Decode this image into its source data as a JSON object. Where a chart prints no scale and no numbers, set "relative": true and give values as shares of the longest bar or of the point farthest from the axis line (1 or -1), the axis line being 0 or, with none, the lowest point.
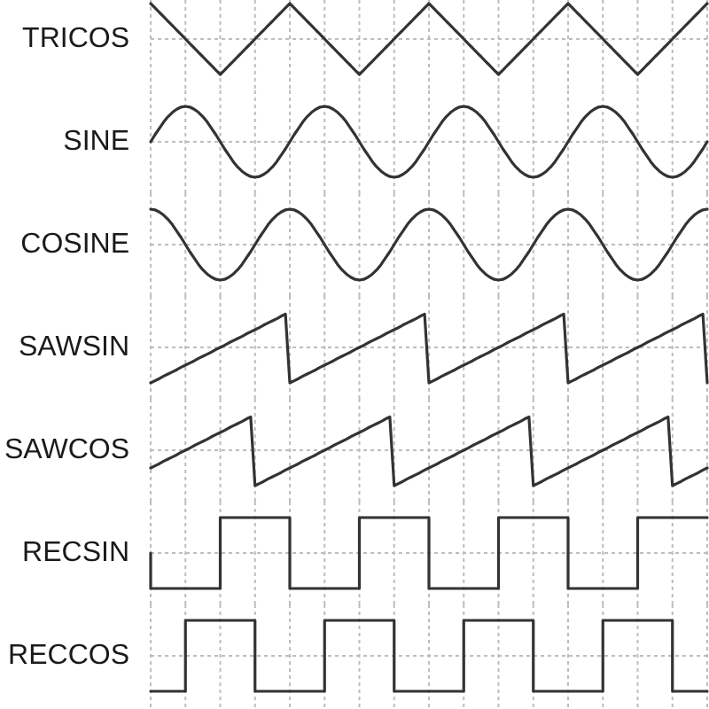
{
  "chart_data": [
    {
      "type": "line",
      "ylabel": "TRICOS",
      "relative": true,
      "color": "#333333",
      "grid": "x",
      "categories": [
        null,
        null,
        null,
        null,
        null,
        null,
        null,
        null,
        null,
        null,
        null,
        null,
        null,
        null,
        null,
        null,
        null,
        null,
        null,
        null,
        null,
        null,
        null,
        null,
        null,
        null,
        null,
        null,
        null,
        null,
        null,
        null,
        null,
        null,
        null,
        null,
        null,
        null,
        null,
        null,
        null,
        null,
        null,
        null,
        null,
        null,
        null,
        null,
        null,
        null,
        null,
        null,
        null,
        null,
        null,
        null,
        null,
        null,
        null,
        null,
        null,
        null,
        null,
        null,
        null,
        null,
        null,
        null,
        null,
        null,
        null,
        null,
        null,
        null,
        null,
        null,
        null,
        null,
        null,
        null,
        null,
        null,
        null,
        null,
        null,
        null,
        null,
        null,
        null,
        null,
        null,
        null,
        null,
        null,
        null,
        null,
        null,
        null,
        null,
        null,
        null,
        null,
        null,
        null,
        null,
        null,
        null,
        null,
        null,
        null,
        null,
        null,
        null,
        null,
        null,
        null,
        null,
        null,
        null,
        null,
        null,
        null,
        null,
        null,
        null,
        null,
        null,
        null,
        null
      ],
      "values": [
        1,
        0.88,
        0.75,
        0.63,
        0.5,
        0.38,
        0.25,
        0.13,
        0,
        -0.13,
        -0.25,
        -0.38,
        -0.5,
        -0.63,
        -0.75,
        -0.88,
        -1,
        -0.88,
        -0.75,
        -0.63,
        -0.5,
        -0.38,
        -0.25,
        -0.13,
        0,
        0.13,
        0.25,
        0.38,
        0.5,
        0.63,
        0.75,
        0.88,
        1,
        0.88,
        0.75,
        0.63,
        0.5,
        0.38,
        0.25,
        0.13,
        0,
        -0.13,
        -0.25,
        -0.38,
        -0.5,
        -0.63,
        -0.75,
        -0.88,
        -1,
        -0.88,
        -0.75,
        -0.63,
        -0.5,
        -0.38,
        -0.25,
        -0.13,
        0,
        0.13,
        0.25,
        0.38,
        0.5,
        0.63,
        0.75,
        0.88,
        1,
        0.88,
        0.75,
        0.63,
        0.5,
        0.38,
        0.25,
        0.13,
        0,
        -0.13,
        -0.25,
        -0.38,
        -0.5,
        -0.63,
        -0.75,
        -0.88,
        -1,
        -0.88,
        -0.75,
        -0.63,
        -0.5,
        -0.38,
        -0.25,
        -0.13,
        0,
        0.13,
        0.25,
        0.38,
        0.5,
        0.63,
        0.75,
        0.88,
        1,
        0.88,
        0.75,
        0.63,
        0.5,
        0.38,
        0.25,
        0.13,
        0,
        -0.13,
        -0.25,
        -0.38,
        -0.5,
        -0.63,
        -0.75,
        -0.88,
        -1,
        -0.88,
        -0.75,
        -0.63,
        -0.5,
        -0.38,
        -0.25,
        -0.13,
        0,
        0.13,
        0.25,
        0.38,
        0.5,
        0.63,
        0.75,
        0.88,
        1
      ]
    },
    {
      "type": "line",
      "ylabel": "SINE",
      "relative": true,
      "color": "#333333",
      "grid": "x",
      "categories": [
        null,
        null,
        null,
        null,
        null,
        null,
        null,
        null,
        null,
        null,
        null,
        null,
        null,
        null,
        null,
        null,
        null,
        null,
        null,
        null,
        null,
        null,
        null,
        null,
        null,
        null,
        null,
        null,
        null,
        null,
        null,
        null,
        null,
        null,
        null,
        null,
        null,
        null,
        null,
        null,
        null,
        null,
        null,
        null,
        null,
        null,
        null,
        null,
        null,
        null,
        null,
        null,
        null,
        null,
        null,
        null,
        null,
        null,
        null,
        null,
        null,
        null,
        null,
        null,
        null,
        null,
        null,
        null,
        null,
        null,
        null,
        null,
        null,
        null,
        null,
        null,
        null,
        null,
        null,
        null,
        null,
        null,
        null,
        null,
        null,
        null,
        null,
        null,
        null,
        null,
        null,
        null,
        null,
        null,
        null,
        null,
        null,
        null,
        null,
        null,
        null,
        null,
        null,
        null,
        null,
        null,
        null,
        null,
        null,
        null,
        null,
        null,
        null,
        null,
        null,
        null,
        null,
        null,
        null,
        null,
        null,
        null,
        null,
        null,
        null,
        null,
        null,
        null,
        null
      ],
      "values": [
        0,
        0.2,
        0.38,
        0.56,
        0.71,
        0.83,
        0.92,
        0.98,
        1,
        0.98,
        0.92,
        0.83,
        0.71,
        0.56,
        0.38,
        0.2,
        0,
        -0.2,
        -0.38,
        -0.56,
        -0.71,
        -0.83,
        -0.92,
        -0.98,
        -1,
        -0.98,
        -0.92,
        -0.83,
        -0.71,
        -0.56,
        -0.38,
        -0.2,
        0,
        0.2,
        0.38,
        0.56,
        0.71,
        0.83,
        0.92,
        0.98,
        1,
        0.98,
        0.92,
        0.83,
        0.71,
        0.56,
        0.38,
        0.2,
        0,
        -0.2,
        -0.38,
        -0.56,
        -0.71,
        -0.83,
        -0.92,
        -0.98,
        -1,
        -0.98,
        -0.92,
        -0.83,
        -0.71,
        -0.56,
        -0.38,
        -0.2,
        0,
        0.2,
        0.38,
        0.56,
        0.71,
        0.83,
        0.92,
        0.98,
        1,
        0.98,
        0.92,
        0.83,
        0.71,
        0.56,
        0.38,
        0.2,
        0,
        -0.2,
        -0.38,
        -0.56,
        -0.71,
        -0.83,
        -0.92,
        -0.98,
        -1,
        -0.98,
        -0.92,
        -0.83,
        -0.71,
        -0.56,
        -0.38,
        -0.2,
        0,
        0.2,
        0.38,
        0.56,
        0.71,
        0.83,
        0.92,
        0.98,
        1,
        0.98,
        0.92,
        0.83,
        0.71,
        0.56,
        0.38,
        0.2,
        0,
        -0.2,
        -0.38,
        -0.56,
        -0.71,
        -0.83,
        -0.92,
        -0.98,
        -1,
        -0.98,
        -0.92,
        -0.83,
        -0.71,
        -0.56,
        -0.38,
        -0.2,
        0
      ]
    },
    {
      "type": "line",
      "ylabel": "COSINE",
      "relative": true,
      "color": "#333333",
      "grid": "x",
      "categories": [
        null,
        null,
        null,
        null,
        null,
        null,
        null,
        null,
        null,
        null,
        null,
        null,
        null,
        null,
        null,
        null,
        null,
        null,
        null,
        null,
        null,
        null,
        null,
        null,
        null,
        null,
        null,
        null,
        null,
        null,
        null,
        null,
        null,
        null,
        null,
        null,
        null,
        null,
        null,
        null,
        null,
        null,
        null,
        null,
        null,
        null,
        null,
        null,
        null,
        null,
        null,
        null,
        null,
        null,
        null,
        null,
        null,
        null,
        null,
        null,
        null,
        null,
        null,
        null,
        null,
        null,
        null,
        null,
        null,
        null,
        null,
        null,
        null,
        null,
        null,
        null,
        null,
        null,
        null,
        null,
        null,
        null,
        null,
        null,
        null,
        null,
        null,
        null,
        null,
        null,
        null,
        null,
        null,
        null,
        null,
        null,
        null,
        null,
        null,
        null,
        null,
        null,
        null,
        null,
        null,
        null,
        null,
        null,
        null,
        null,
        null,
        null,
        null,
        null,
        null,
        null,
        null,
        null,
        null,
        null,
        null,
        null,
        null,
        null,
        null,
        null,
        null,
        null,
        null
      ],
      "values": [
        1,
        0.98,
        0.92,
        0.83,
        0.71,
        0.56,
        0.38,
        0.2,
        0,
        -0.2,
        -0.38,
        -0.56,
        -0.71,
        -0.83,
        -0.92,
        -0.98,
        -1,
        -0.98,
        -0.92,
        -0.83,
        -0.71,
        -0.56,
        -0.38,
        -0.2,
        0,
        0.2,
        0.38,
        0.56,
        0.71,
        0.83,
        0.92,
        0.98,
        1,
        0.98,
        0.92,
        0.83,
        0.71,
        0.56,
        0.38,
        0.2,
        0,
        -0.2,
        -0.38,
        -0.56,
        -0.71,
        -0.83,
        -0.92,
        -0.98,
        -1,
        -0.98,
        -0.92,
        -0.83,
        -0.71,
        -0.56,
        -0.38,
        -0.2,
        0,
        0.2,
        0.38,
        0.56,
        0.71,
        0.83,
        0.92,
        0.98,
        1,
        0.98,
        0.92,
        0.83,
        0.71,
        0.56,
        0.38,
        0.2,
        0,
        -0.2,
        -0.38,
        -0.56,
        -0.71,
        -0.83,
        -0.92,
        -0.98,
        -1,
        -0.98,
        -0.92,
        -0.83,
        -0.71,
        -0.56,
        -0.38,
        -0.2,
        0,
        0.2,
        0.38,
        0.56,
        0.71,
        0.83,
        0.92,
        0.98,
        1,
        0.98,
        0.92,
        0.83,
        0.71,
        0.56,
        0.38,
        0.2,
        0,
        -0.2,
        -0.38,
        -0.56,
        -0.71,
        -0.83,
        -0.92,
        -0.98,
        -1,
        -0.98,
        -0.92,
        -0.83,
        -0.71,
        -0.56,
        -0.38,
        -0.2,
        0,
        0.2,
        0.38,
        0.56,
        0.71,
        0.83,
        0.92,
        0.98,
        1
      ]
    },
    {
      "type": "line",
      "ylabel": "SAWSIN",
      "relative": true,
      "color": "#333333",
      "grid": "x",
      "categories": [
        null,
        null,
        null,
        null,
        null,
        null,
        null,
        null,
        null,
        null,
        null,
        null,
        null,
        null,
        null,
        null,
        null,
        null,
        null,
        null,
        null,
        null,
        null,
        null,
        null,
        null,
        null,
        null,
        null,
        null,
        null,
        null,
        null,
        null,
        null,
        null,
        null,
        null,
        null,
        null,
        null,
        null,
        null,
        null,
        null,
        null,
        null,
        null,
        null,
        null,
        null,
        null,
        null,
        null,
        null,
        null,
        null,
        null,
        null,
        null,
        null,
        null,
        null,
        null,
        null,
        null,
        null,
        null,
        null,
        null,
        null,
        null,
        null,
        null,
        null,
        null,
        null,
        null,
        null,
        null,
        null,
        null,
        null,
        null,
        null,
        null,
        null,
        null,
        null,
        null,
        null,
        null,
        null,
        null,
        null,
        null,
        null,
        null,
        null,
        null,
        null,
        null,
        null,
        null,
        null,
        null,
        null,
        null,
        null,
        null,
        null,
        null,
        null,
        null,
        null,
        null,
        null,
        null,
        null,
        null,
        null,
        null,
        null,
        null,
        null,
        null,
        null,
        null,
        null
      ],
      "values": [
        -1,
        -0.94,
        -0.88,
        -0.81,
        -0.75,
        -0.69,
        -0.63,
        -0.56,
        -0.5,
        -0.44,
        -0.38,
        -0.31,
        -0.25,
        -0.19,
        -0.13,
        -0.06,
        0,
        0.06,
        0.13,
        0.19,
        0.25,
        0.31,
        0.38,
        0.44,
        0.5,
        0.56,
        0.63,
        0.69,
        0.75,
        0.81,
        0.88,
        0.94,
        -1,
        -0.94,
        -0.88,
        -0.81,
        -0.75,
        -0.69,
        -0.63,
        -0.56,
        -0.5,
        -0.44,
        -0.38,
        -0.31,
        -0.25,
        -0.19,
        -0.13,
        -0.06,
        0,
        0.06,
        0.13,
        0.19,
        0.25,
        0.31,
        0.38,
        0.44,
        0.5,
        0.56,
        0.63,
        0.69,
        0.75,
        0.81,
        0.88,
        0.94,
        -1,
        -0.94,
        -0.88,
        -0.81,
        -0.75,
        -0.69,
        -0.63,
        -0.56,
        -0.5,
        -0.44,
        -0.38,
        -0.31,
        -0.25,
        -0.19,
        -0.13,
        -0.06,
        0,
        0.06,
        0.13,
        0.19,
        0.25,
        0.31,
        0.38,
        0.44,
        0.5,
        0.56,
        0.63,
        0.69,
        0.75,
        0.81,
        0.88,
        0.94,
        -1,
        -0.94,
        -0.88,
        -0.81,
        -0.75,
        -0.69,
        -0.63,
        -0.56,
        -0.5,
        -0.44,
        -0.38,
        -0.31,
        -0.25,
        -0.19,
        -0.13,
        -0.06,
        0,
        0.06,
        0.13,
        0.19,
        0.25,
        0.31,
        0.38,
        0.44,
        0.5,
        0.56,
        0.63,
        0.69,
        0.75,
        0.81,
        0.88,
        0.94,
        -1
      ]
    },
    {
      "type": "line",
      "ylabel": "SAWCOS",
      "relative": true,
      "color": "#333333",
      "grid": "x",
      "categories": [
        null,
        null,
        null,
        null,
        null,
        null,
        null,
        null,
        null,
        null,
        null,
        null,
        null,
        null,
        null,
        null,
        null,
        null,
        null,
        null,
        null,
        null,
        null,
        null,
        null,
        null,
        null,
        null,
        null,
        null,
        null,
        null,
        null,
        null,
        null,
        null,
        null,
        null,
        null,
        null,
        null,
        null,
        null,
        null,
        null,
        null,
        null,
        null,
        null,
        null,
        null,
        null,
        null,
        null,
        null,
        null,
        null,
        null,
        null,
        null,
        null,
        null,
        null,
        null,
        null,
        null,
        null,
        null,
        null,
        null,
        null,
        null,
        null,
        null,
        null,
        null,
        null,
        null,
        null,
        null,
        null,
        null,
        null,
        null,
        null,
        null,
        null,
        null,
        null,
        null,
        null,
        null,
        null,
        null,
        null,
        null,
        null,
        null,
        null,
        null,
        null,
        null,
        null,
        null,
        null,
        null,
        null,
        null,
        null,
        null,
        null,
        null,
        null,
        null,
        null,
        null,
        null,
        null,
        null,
        null,
        null,
        null,
        null,
        null,
        null,
        null,
        null,
        null,
        null
      ],
      "values": [
        -0.5,
        -0.44,
        -0.38,
        -0.31,
        -0.25,
        -0.19,
        -0.13,
        -0.06,
        0,
        0.06,
        0.13,
        0.19,
        0.25,
        0.31,
        0.38,
        0.44,
        0.5,
        0.56,
        0.63,
        0.69,
        0.75,
        0.81,
        0.88,
        0.94,
        -1,
        -0.94,
        -0.88,
        -0.81,
        -0.75,
        -0.69,
        -0.63,
        -0.56,
        -0.5,
        -0.44,
        -0.38,
        -0.31,
        -0.25,
        -0.19,
        -0.13,
        -0.06,
        0,
        0.06,
        0.13,
        0.19,
        0.25,
        0.31,
        0.38,
        0.44,
        0.5,
        0.56,
        0.63,
        0.69,
        0.75,
        0.81,
        0.88,
        0.94,
        -1,
        -0.94,
        -0.88,
        -0.81,
        -0.75,
        -0.69,
        -0.63,
        -0.56,
        -0.5,
        -0.44,
        -0.38,
        -0.31,
        -0.25,
        -0.19,
        -0.13,
        -0.06,
        0,
        0.06,
        0.13,
        0.19,
        0.25,
        0.31,
        0.38,
        0.44,
        0.5,
        0.56,
        0.63,
        0.69,
        0.75,
        0.81,
        0.88,
        0.94,
        -1,
        -0.94,
        -0.88,
        -0.81,
        -0.75,
        -0.69,
        -0.63,
        -0.56,
        -0.5,
        -0.44,
        -0.38,
        -0.31,
        -0.25,
        -0.19,
        -0.13,
        -0.06,
        0,
        0.06,
        0.13,
        0.19,
        0.25,
        0.31,
        0.38,
        0.44,
        0.5,
        0.56,
        0.63,
        0.69,
        0.75,
        0.81,
        0.88,
        0.94,
        -1,
        -0.94,
        -0.88,
        -0.81,
        -0.75,
        -0.69,
        -0.63,
        -0.56,
        -0.5
      ]
    },
    {
      "type": "step",
      "ylabel": "RECSIN",
      "relative": true,
      "color": "#333333",
      "grid": "x",
      "categories": [
        null,
        null,
        null,
        null,
        null,
        null,
        null,
        null,
        null,
        null,
        null,
        null,
        null,
        null,
        null,
        null,
        null,
        null,
        null,
        null,
        null,
        null,
        null,
        null,
        null,
        null,
        null,
        null,
        null,
        null,
        null,
        null,
        null,
        null,
        null,
        null,
        null,
        null,
        null,
        null,
        null,
        null,
        null,
        null,
        null,
        null,
        null,
        null,
        null,
        null,
        null,
        null,
        null,
        null,
        null,
        null,
        null,
        null,
        null,
        null,
        null,
        null,
        null,
        null,
        null,
        null,
        null,
        null,
        null,
        null,
        null,
        null,
        null,
        null,
        null,
        null,
        null,
        null,
        null,
        null,
        null,
        null,
        null,
        null,
        null,
        null,
        null,
        null,
        null,
        null,
        null,
        null,
        null,
        null,
        null,
        null,
        null,
        null,
        null,
        null,
        null,
        null,
        null,
        null,
        null,
        null,
        null,
        null,
        null,
        null,
        null,
        null,
        null,
        null,
        null,
        null,
        null,
        null,
        null,
        null,
        null,
        null,
        null,
        null,
        null,
        null,
        null,
        null,
        null
      ],
      "values": [
        0,
        -1,
        -1,
        -1,
        -1,
        -1,
        -1,
        -1,
        -1,
        -1,
        -1,
        -1,
        -1,
        -1,
        -1,
        -1,
        -1,
        1,
        1,
        1,
        1,
        1,
        1,
        1,
        1,
        1,
        1,
        1,
        1,
        1,
        1,
        1,
        1,
        -1,
        -1,
        -1,
        -1,
        -1,
        -1,
        -1,
        -1,
        -1,
        -1,
        -1,
        -1,
        -1,
        -1,
        -1,
        -1,
        1,
        1,
        1,
        1,
        1,
        1,
        1,
        1,
        1,
        1,
        1,
        1,
        1,
        1,
        1,
        1,
        -1,
        -1,
        -1,
        -1,
        -1,
        -1,
        -1,
        -1,
        -1,
        -1,
        -1,
        -1,
        -1,
        -1,
        -1,
        -1,
        1,
        1,
        1,
        1,
        1,
        1,
        1,
        1,
        1,
        1,
        1,
        1,
        1,
        1,
        1,
        1,
        -1,
        -1,
        -1,
        -1,
        -1,
        -1,
        -1,
        -1,
        -1,
        -1,
        -1,
        -1,
        -1,
        -1,
        -1,
        -1,
        1,
        1,
        1,
        1,
        1,
        1,
        1,
        1,
        1,
        1,
        1,
        1,
        1,
        1,
        1,
        1
      ]
    },
    {
      "type": "step",
      "ylabel": "RECCOS",
      "relative": true,
      "color": "#333333",
      "grid": "x",
      "categories": [
        null,
        null,
        null,
        null,
        null,
        null,
        null,
        null,
        null,
        null,
        null,
        null,
        null,
        null,
        null,
        null,
        null,
        null,
        null,
        null,
        null,
        null,
        null,
        null,
        null,
        null,
        null,
        null,
        null,
        null,
        null,
        null,
        null,
        null,
        null,
        null,
        null,
        null,
        null,
        null,
        null,
        null,
        null,
        null,
        null,
        null,
        null,
        null,
        null,
        null,
        null,
        null,
        null,
        null,
        null,
        null,
        null,
        null,
        null,
        null,
        null,
        null,
        null,
        null,
        null,
        null,
        null,
        null,
        null,
        null,
        null,
        null,
        null,
        null,
        null,
        null,
        null,
        null,
        null,
        null,
        null,
        null,
        null,
        null,
        null,
        null,
        null,
        null,
        null,
        null,
        null,
        null,
        null,
        null,
        null,
        null,
        null,
        null,
        null,
        null,
        null,
        null,
        null,
        null,
        null,
        null,
        null,
        null,
        null,
        null,
        null,
        null,
        null,
        null,
        null,
        null,
        null,
        null,
        null,
        null,
        null,
        null,
        null,
        null,
        null,
        null,
        null,
        null,
        null
      ],
      "values": [
        -1,
        -1,
        -1,
        -1,
        -1,
        -1,
        -1,
        -1,
        -1,
        1,
        1,
        1,
        1,
        1,
        1,
        1,
        1,
        1,
        1,
        1,
        1,
        1,
        1,
        1,
        1,
        -1,
        -1,
        -1,
        -1,
        -1,
        -1,
        -1,
        -1,
        -1,
        -1,
        -1,
        -1,
        -1,
        -1,
        -1,
        -1,
        1,
        1,
        1,
        1,
        1,
        1,
        1,
        1,
        1,
        1,
        1,
        1,
        1,
        1,
        1,
        1,
        -1,
        -1,
        -1,
        -1,
        -1,
        -1,
        -1,
        -1,
        -1,
        -1,
        -1,
        -1,
        -1,
        -1,
        -1,
        -1,
        1,
        1,
        1,
        1,
        1,
        1,
        1,
        1,
        1,
        1,
        1,
        1,
        1,
        1,
        1,
        1,
        -1,
        -1,
        -1,
        -1,
        -1,
        -1,
        -1,
        -1,
        -1,
        -1,
        -1,
        -1,
        -1,
        -1,
        -1,
        -1,
        1,
        1,
        1,
        1,
        1,
        1,
        1,
        1,
        1,
        1,
        1,
        1,
        1,
        1,
        1,
        1,
        -1,
        -1,
        -1,
        -1,
        -1,
        -1,
        -1,
        -1
      ]
    }
  ]
}
